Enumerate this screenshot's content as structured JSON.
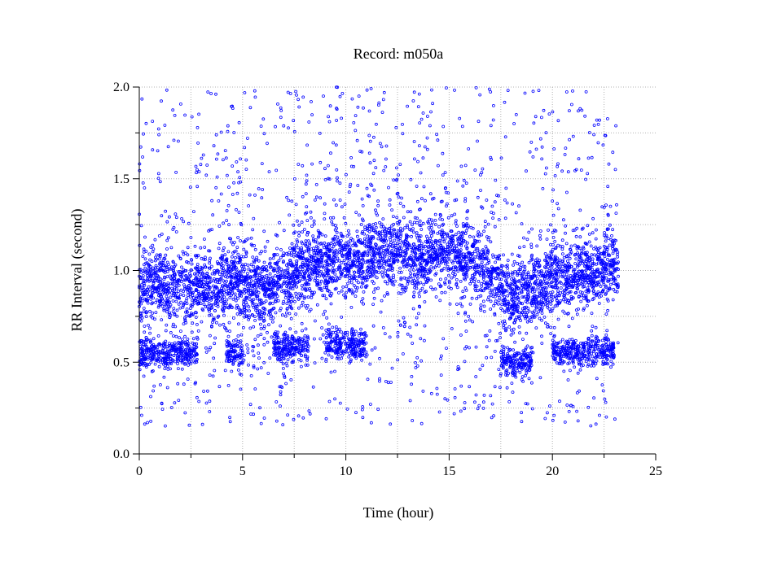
{
  "chart_data": {
    "type": "scatter",
    "title": "Record:  m050a",
    "xlabel": "Time (hour)",
    "ylabel": "RR Interval (second)",
    "xlim": [
      0,
      25
    ],
    "ylim": [
      0.0,
      2.0
    ],
    "x_ticks": [
      "0",
      "5",
      "10",
      "15",
      "20",
      "25"
    ],
    "y_ticks": [
      "0.0",
      "0.5",
      "1.0",
      "1.5",
      "2.0"
    ],
    "grid": true,
    "marker": "open-circle",
    "point_color": "#0000ff",
    "record_end_hour": 23.2,
    "trend": [
      {
        "x": 0.0,
        "y": 0.92
      },
      {
        "x": 0.5,
        "y": 0.9
      },
      {
        "x": 1.0,
        "y": 0.95
      },
      {
        "x": 1.5,
        "y": 0.88
      },
      {
        "x": 2.0,
        "y": 0.93
      },
      {
        "x": 2.5,
        "y": 0.88
      },
      {
        "x": 3.0,
        "y": 0.93
      },
      {
        "x": 3.5,
        "y": 0.87
      },
      {
        "x": 4.0,
        "y": 0.9
      },
      {
        "x": 4.5,
        "y": 0.97
      },
      {
        "x": 5.0,
        "y": 0.93
      },
      {
        "x": 5.5,
        "y": 0.92
      },
      {
        "x": 6.0,
        "y": 0.9
      },
      {
        "x": 6.5,
        "y": 0.93
      },
      {
        "x": 7.0,
        "y": 0.92
      },
      {
        "x": 7.5,
        "y": 1.0
      },
      {
        "x": 8.0,
        "y": 1.02
      },
      {
        "x": 8.5,
        "y": 1.07
      },
      {
        "x": 9.0,
        "y": 1.04
      },
      {
        "x": 9.5,
        "y": 1.08
      },
      {
        "x": 10.0,
        "y": 1.06
      },
      {
        "x": 10.5,
        "y": 1.02
      },
      {
        "x": 11.0,
        "y": 1.08
      },
      {
        "x": 11.5,
        "y": 1.1
      },
      {
        "x": 12.0,
        "y": 1.1
      },
      {
        "x": 12.5,
        "y": 1.12
      },
      {
        "x": 13.0,
        "y": 1.08
      },
      {
        "x": 13.5,
        "y": 1.05
      },
      {
        "x": 14.0,
        "y": 1.08
      },
      {
        "x": 14.5,
        "y": 1.12
      },
      {
        "x": 15.0,
        "y": 1.1
      },
      {
        "x": 15.5,
        "y": 1.08
      },
      {
        "x": 16.0,
        "y": 1.06
      },
      {
        "x": 16.5,
        "y": 1.02
      },
      {
        "x": 17.0,
        "y": 1.0
      },
      {
        "x": 17.5,
        "y": 0.92
      },
      {
        "x": 18.0,
        "y": 0.85
      },
      {
        "x": 18.5,
        "y": 0.88
      },
      {
        "x": 19.0,
        "y": 0.9
      },
      {
        "x": 19.5,
        "y": 0.93
      },
      {
        "x": 20.0,
        "y": 0.97
      },
      {
        "x": 20.5,
        "y": 0.98
      },
      {
        "x": 21.0,
        "y": 0.96
      },
      {
        "x": 21.5,
        "y": 0.98
      },
      {
        "x": 22.0,
        "y": 1.0
      },
      {
        "x": 22.5,
        "y": 1.02
      },
      {
        "x": 23.0,
        "y": 1.02
      },
      {
        "x": 23.2,
        "y": 1.0
      }
    ],
    "low_clusters": [
      {
        "x_start": 0.0,
        "x_end": 2.8,
        "y": 0.55
      },
      {
        "x_start": 4.2,
        "x_end": 5.0,
        "y": 0.55
      },
      {
        "x_start": 6.5,
        "x_end": 8.2,
        "y": 0.58
      },
      {
        "x_start": 9.0,
        "x_end": 11.0,
        "y": 0.6
      },
      {
        "x_start": 17.5,
        "x_end": 19.0,
        "y": 0.5
      },
      {
        "x_start": 20.0,
        "x_end": 23.0,
        "y": 0.56
      }
    ]
  }
}
